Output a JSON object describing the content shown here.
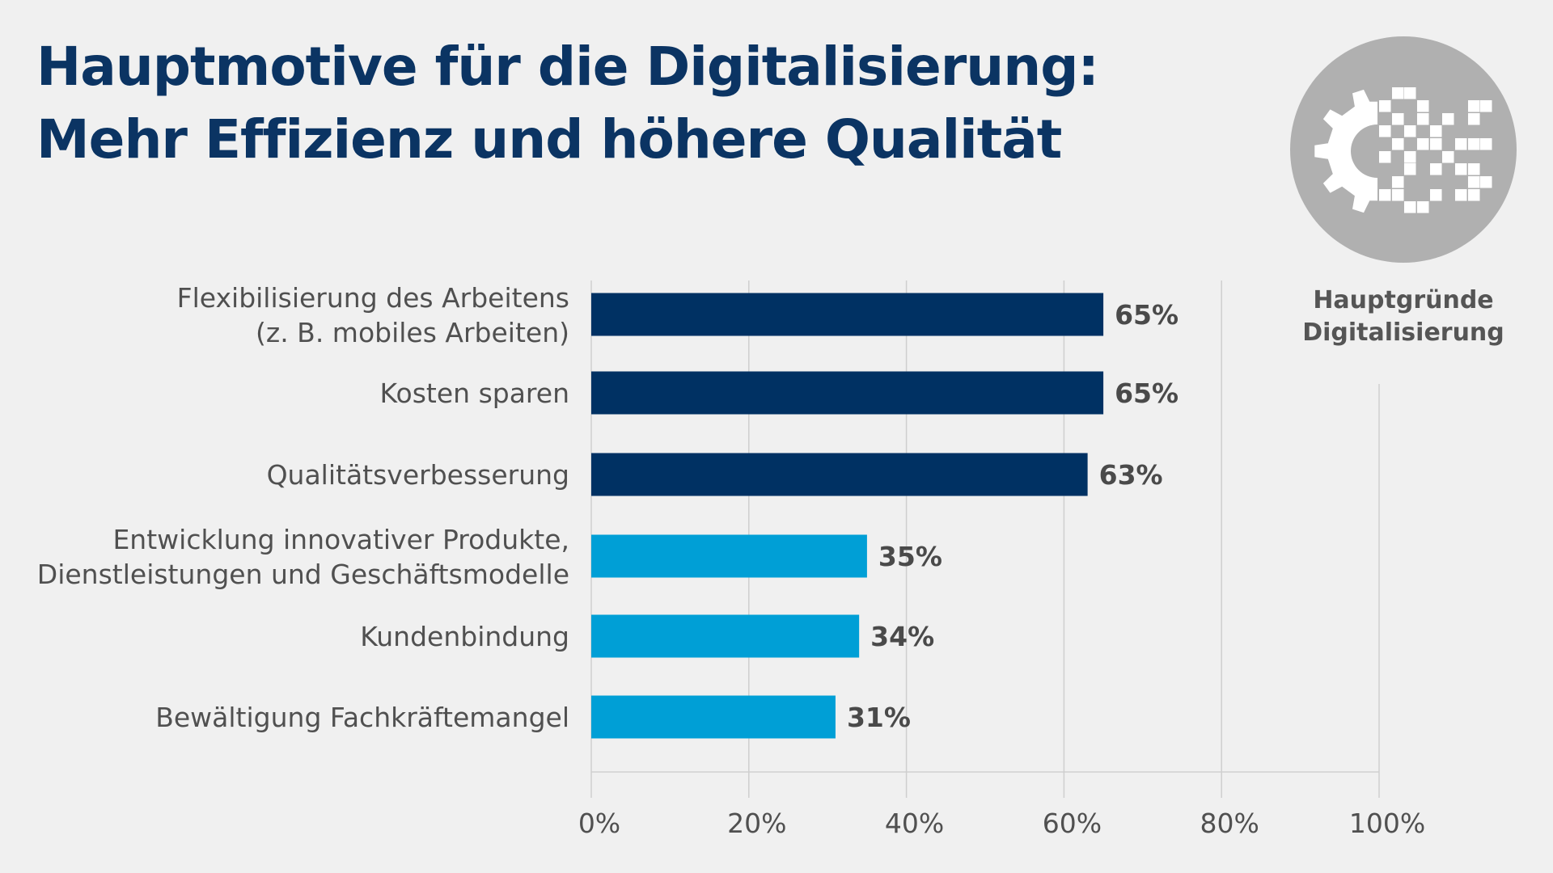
{
  "chart_data": {
    "type": "bar",
    "orientation": "horizontal",
    "title": "Hauptmotive für die Digitalisierung:",
    "subtitle": "Mehr Effizienz und höhere Qualität",
    "categories": [
      [
        "Flexibilisierung des Arbeitens",
        "(z. B. mobiles Arbeiten)"
      ],
      [
        "Kosten sparen"
      ],
      [
        "Qualitätsverbesserung"
      ],
      [
        "Entwicklung innovativer Produkte,",
        "Dienstleistungen und Geschäftsmodelle"
      ],
      [
        "Kundenbindung"
      ],
      [
        "Bewältigung Fachkräftemangel"
      ]
    ],
    "values": [
      65,
      65,
      63,
      35,
      34,
      31
    ],
    "value_labels": [
      "65%",
      "65%",
      "63%",
      "35%",
      "34%",
      "31%"
    ],
    "bar_colors": [
      "#003163",
      "#003163",
      "#003163",
      "#009fd6",
      "#009fd6",
      "#009fd6"
    ],
    "xlim": [
      0,
      100
    ],
    "xticks": [
      0,
      20,
      40,
      60,
      80,
      100
    ],
    "xtick_labels": [
      "0%",
      "20%",
      "40%",
      "60%",
      "80%",
      "100%"
    ],
    "xlabel": "",
    "ylabel": "",
    "grid": true
  },
  "badge": {
    "icon": "gear-digital-pixels-icon",
    "caption_line1": "Hauptgründe",
    "caption_line2": "Digitalisierung",
    "circle_color": "#b0b0b0"
  },
  "colors": {
    "title": "#0b3463",
    "background": "#f0f0f0"
  }
}
